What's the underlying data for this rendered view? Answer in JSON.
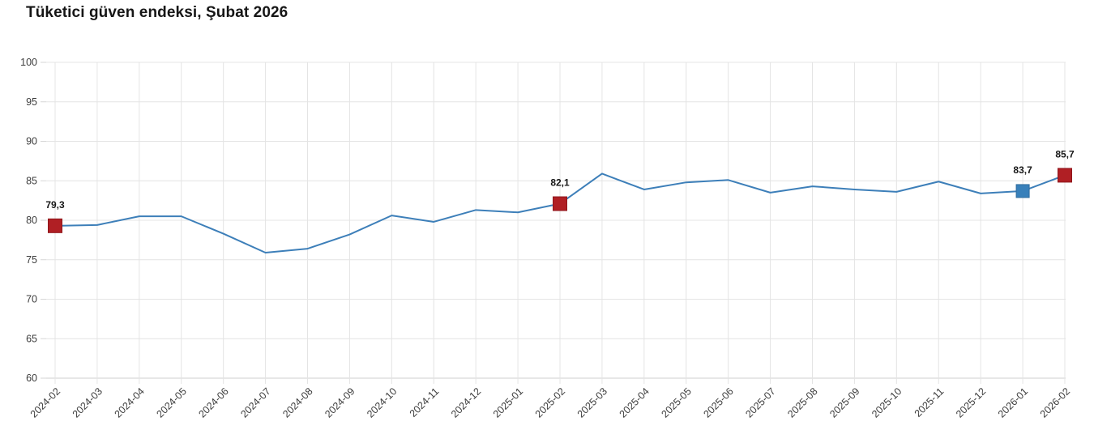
{
  "title": "Tüketici güven endeksi, Şubat 2026",
  "chart_data": {
    "type": "line",
    "title": "Tüketici güven endeksi, Şubat 2026",
    "x": [
      "2024-02",
      "2024-03",
      "2024-04",
      "2024-05",
      "2024-06",
      "2024-07",
      "2024-08",
      "2024-09",
      "2024-10",
      "2024-11",
      "2024-12",
      "2025-01",
      "2025-02",
      "2025-03",
      "2025-04",
      "2025-05",
      "2025-06",
      "2025-07",
      "2025-08",
      "2025-09",
      "2025-10",
      "2025-11",
      "2025-12",
      "2026-01",
      "2026-02"
    ],
    "series": [
      {
        "name": "Tüketici güven endeksi",
        "values": [
          79.3,
          79.4,
          80.5,
          80.5,
          78.3,
          75.9,
          76.4,
          78.2,
          80.6,
          79.8,
          81.3,
          81.0,
          82.1,
          85.9,
          83.9,
          84.8,
          85.1,
          83.5,
          84.3,
          83.9,
          83.6,
          84.9,
          83.4,
          83.7,
          85.7
        ]
      }
    ],
    "ylim": [
      60,
      100
    ],
    "ytick_step": 5,
    "grid": true,
    "legend_position": "none",
    "xlabel": "",
    "ylabel": "",
    "line_color": "#3d7fb9",
    "colors": {
      "grid": "#e4e4e4",
      "axis": "#cfcfcf",
      "tick": "#d6d6d6",
      "highlight_red": "#b01f24",
      "highlight_red_border": "#8f161b",
      "highlight_blue": "#3880ba",
      "highlight_blue_border": "#2e6b9d",
      "label_text": "#161616"
    },
    "highlights": [
      {
        "x": "2024-02",
        "value": 79.3,
        "value_label": "79,3",
        "marker": "square",
        "color_key": "highlight_red"
      },
      {
        "x": "2025-02",
        "value": 82.1,
        "value_label": "82,1",
        "marker": "square",
        "color_key": "highlight_red"
      },
      {
        "x": "2026-01",
        "value": 83.7,
        "value_label": "83,7",
        "marker": "square",
        "color_key": "highlight_blue"
      },
      {
        "x": "2026-02",
        "value": 85.7,
        "value_label": "85,7",
        "marker": "square",
        "color_key": "highlight_red"
      }
    ]
  }
}
